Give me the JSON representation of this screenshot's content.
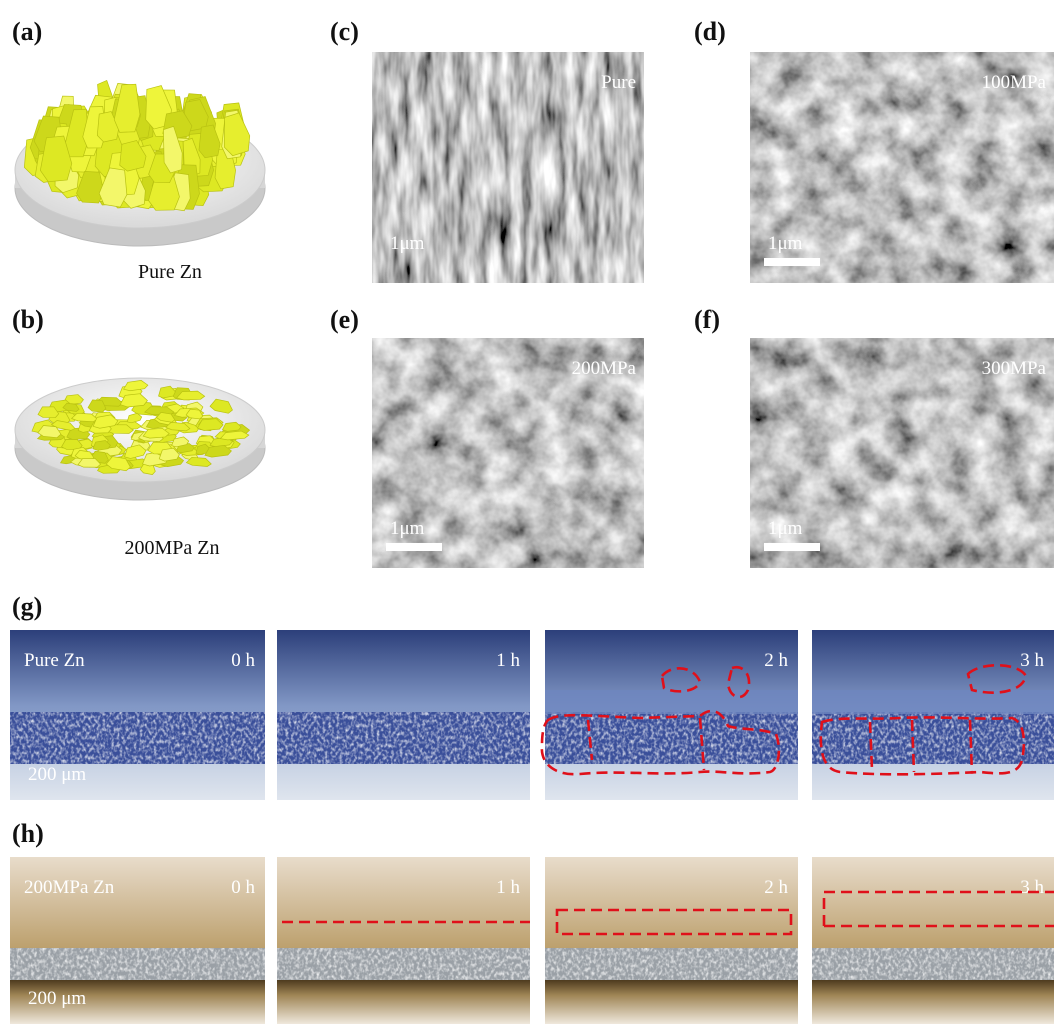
{
  "panels": {
    "a": {
      "label": "(a)",
      "caption": "Pure Zn"
    },
    "b": {
      "label": "(b)",
      "caption": "200MPa Zn"
    },
    "c": {
      "label": "(c)",
      "tag": "Pure",
      "scale": "1μm"
    },
    "d": {
      "label": "(d)",
      "tag": "100MPa",
      "scale": "1μm"
    },
    "e": {
      "label": "(e)",
      "tag": "200MPa",
      "scale": "1μm"
    },
    "f": {
      "label": "(f)",
      "tag": "300MPa",
      "scale": "1μm"
    },
    "g": {
      "label": "(g)",
      "sample": "Pure Zn",
      "times": [
        "0 h",
        "1 h",
        "2 h",
        "3 h"
      ],
      "scale": "200 μm"
    },
    "h": {
      "label": "(h)",
      "sample": "200MPa Zn",
      "times": [
        "0 h",
        "1 h",
        "2 h",
        "3 h"
      ],
      "scale": "200 μm"
    }
  }
}
